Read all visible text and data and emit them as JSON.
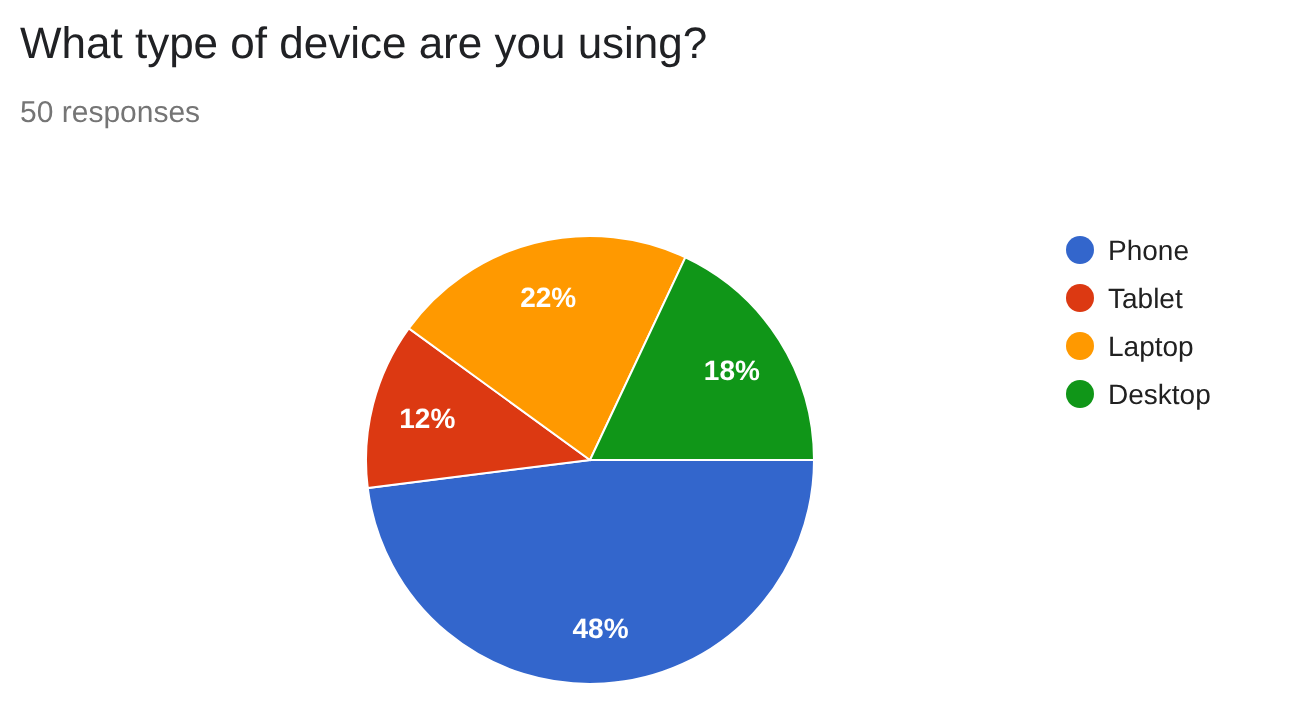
{
  "chart_data": {
    "type": "pie",
    "title": "What type of device are you using?",
    "subtitle": "50 responses",
    "categories": [
      "Phone",
      "Tablet",
      "Laptop",
      "Desktop"
    ],
    "values": [
      48,
      12,
      22,
      18
    ],
    "colors": [
      "#3366cc",
      "#dc3912",
      "#ff9900",
      "#109618"
    ],
    "value_labels": [
      "48%",
      "12%",
      "22%",
      "18%"
    ],
    "legend": "right"
  }
}
